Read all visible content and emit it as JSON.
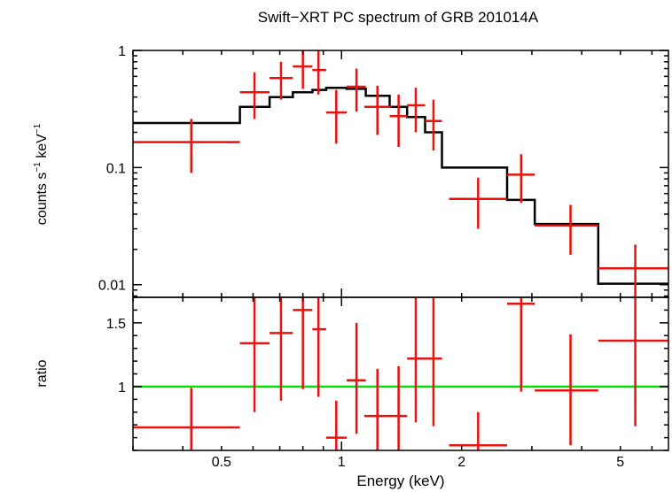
{
  "chart_data": {
    "type": "line",
    "title": "Swift−XRT PC spectrum of GRB 201014A",
    "xlabel": "Energy (keV)",
    "x_scale": "log",
    "xlim": [
      0.3,
      6.6
    ],
    "x_ticks": [
      {
        "value": 0.5,
        "label": "0.5"
      },
      {
        "value": 1,
        "label": "1"
      },
      {
        "value": 2,
        "label": "2"
      },
      {
        "value": 5,
        "label": "5"
      }
    ],
    "top_panel": {
      "ylabel_main": "counts s",
      "ylabel_sup1": "−1",
      "ylabel_mid": " keV",
      "ylabel_sup2": "−1",
      "y_scale": "log",
      "ylim": [
        0.0078,
        1.0
      ],
      "y_ticks": [
        {
          "value": 1,
          "label": "1"
        },
        {
          "value": 0.1,
          "label": "0.1"
        },
        {
          "value": 0.01,
          "label": "0.01"
        }
      ],
      "data_points": [
        {
          "x": 0.42,
          "x_lo": 0.3,
          "x_hi": 0.556,
          "y": 0.165,
          "y_lo": 0.09,
          "y_hi": 0.26
        },
        {
          "x": 0.605,
          "x_lo": 0.556,
          "x_hi": 0.66,
          "y": 0.44,
          "y_lo": 0.26,
          "y_hi": 0.65
        },
        {
          "x": 0.705,
          "x_lo": 0.66,
          "x_hi": 0.755,
          "y": 0.58,
          "y_lo": 0.38,
          "y_hi": 0.8
        },
        {
          "x": 0.8,
          "x_lo": 0.755,
          "x_hi": 0.845,
          "y": 0.73,
          "y_lo": 0.47,
          "y_hi": 1.0
        },
        {
          "x": 0.875,
          "x_lo": 0.845,
          "x_hi": 0.915,
          "y": 0.68,
          "y_lo": 0.42,
          "y_hi": 1.0
        },
        {
          "x": 0.97,
          "x_lo": 0.915,
          "x_hi": 1.03,
          "y": 0.295,
          "y_lo": 0.16,
          "y_hi": 0.46
        },
        {
          "x": 1.09,
          "x_lo": 1.03,
          "x_hi": 1.15,
          "y": 0.49,
          "y_lo": 0.3,
          "y_hi": 0.7
        },
        {
          "x": 1.23,
          "x_lo": 1.14,
          "x_hi": 1.33,
          "y": 0.33,
          "y_lo": 0.19,
          "y_hi": 0.5
        },
        {
          "x": 1.39,
          "x_lo": 1.32,
          "x_hi": 1.46,
          "y": 0.275,
          "y_lo": 0.15,
          "y_hi": 0.42
        },
        {
          "x": 1.535,
          "x_lo": 1.46,
          "x_hi": 1.62,
          "y": 0.34,
          "y_lo": 0.2,
          "y_hi": 0.48
        },
        {
          "x": 1.7,
          "x_lo": 1.62,
          "x_hi": 1.785,
          "y": 0.25,
          "y_lo": 0.14,
          "y_hi": 0.38
        },
        {
          "x": 2.2,
          "x_lo": 1.86,
          "x_hi": 2.6,
          "y": 0.054,
          "y_lo": 0.03,
          "y_hi": 0.082
        },
        {
          "x": 2.82,
          "x_lo": 2.6,
          "x_hi": 3.05,
          "y": 0.087,
          "y_lo": 0.05,
          "y_hi": 0.13
        },
        {
          "x": 3.75,
          "x_lo": 3.05,
          "x_hi": 4.4,
          "y": 0.032,
          "y_lo": 0.018,
          "y_hi": 0.048
        },
        {
          "x": 5.45,
          "x_lo": 4.4,
          "x_hi": 6.6,
          "y": 0.0138,
          "y_lo": 0.0078,
          "y_hi": 0.022
        }
      ],
      "model_steps": [
        {
          "x_lo": 0.3,
          "x_hi": 0.556,
          "y": 0.24
        },
        {
          "x_lo": 0.556,
          "x_hi": 0.66,
          "y": 0.33
        },
        {
          "x_lo": 0.66,
          "x_hi": 0.755,
          "y": 0.4
        },
        {
          "x_lo": 0.755,
          "x_hi": 0.845,
          "y": 0.44
        },
        {
          "x_lo": 0.845,
          "x_hi": 0.915,
          "y": 0.46
        },
        {
          "x_lo": 0.915,
          "x_hi": 1.03,
          "y": 0.48
        },
        {
          "x_lo": 1.03,
          "x_hi": 1.15,
          "y": 0.47
        },
        {
          "x_lo": 1.15,
          "x_hi": 1.32,
          "y": 0.41
        },
        {
          "x_lo": 1.32,
          "x_hi": 1.46,
          "y": 0.33
        },
        {
          "x_lo": 1.46,
          "x_hi": 1.62,
          "y": 0.27
        },
        {
          "x_lo": 1.62,
          "x_hi": 1.785,
          "y": 0.2
        },
        {
          "x_lo": 1.785,
          "x_hi": 2.6,
          "y": 0.1
        },
        {
          "x_lo": 2.6,
          "x_hi": 3.05,
          "y": 0.053
        },
        {
          "x_lo": 3.05,
          "x_hi": 4.4,
          "y": 0.033
        },
        {
          "x_lo": 4.4,
          "x_hi": 6.6,
          "y": 0.0102
        }
      ]
    },
    "bottom_panel": {
      "ylabel": "ratio",
      "y_scale": "linear",
      "ylim": [
        0.5,
        1.7
      ],
      "y_ticks": [
        {
          "value": 1,
          "label": "1"
        },
        {
          "value": 1.5,
          "label": "1.5"
        }
      ],
      "reference_line": 1.0,
      "data_points": [
        {
          "x": 0.42,
          "x_lo": 0.3,
          "x_hi": 0.556,
          "y": 0.68,
          "y_lo": 0.5,
          "y_hi": 0.99
        },
        {
          "x": 0.605,
          "x_lo": 0.556,
          "x_hi": 0.66,
          "y": 1.34,
          "y_lo": 0.8,
          "y_hi": 1.7
        },
        {
          "x": 0.705,
          "x_lo": 0.66,
          "x_hi": 0.755,
          "y": 1.42,
          "y_lo": 0.89,
          "y_hi": 1.7
        },
        {
          "x": 0.8,
          "x_lo": 0.755,
          "x_hi": 0.845,
          "y": 1.6,
          "y_lo": 0.98,
          "y_hi": 1.7
        },
        {
          "x": 0.875,
          "x_lo": 0.845,
          "x_hi": 0.915,
          "y": 1.45,
          "y_lo": 0.92,
          "y_hi": 1.7
        },
        {
          "x": 0.97,
          "x_lo": 0.915,
          "x_hi": 1.03,
          "y": 0.6,
          "y_lo": 0.5,
          "y_hi": 0.89
        },
        {
          "x": 1.09,
          "x_lo": 1.03,
          "x_hi": 1.15,
          "y": 1.05,
          "y_lo": 0.63,
          "y_hi": 1.5
        },
        {
          "x": 1.23,
          "x_lo": 1.14,
          "x_hi": 1.33,
          "y": 0.77,
          "y_lo": 0.5,
          "y_hi": 1.14
        },
        {
          "x": 1.39,
          "x_lo": 1.32,
          "x_hi": 1.46,
          "y": 0.77,
          "y_lo": 0.5,
          "y_hi": 1.16
        },
        {
          "x": 1.535,
          "x_lo": 1.46,
          "x_hi": 1.62,
          "y": 1.22,
          "y_lo": 0.72,
          "y_hi": 1.7
        },
        {
          "x": 1.7,
          "x_lo": 1.62,
          "x_hi": 1.785,
          "y": 1.22,
          "y_lo": 0.69,
          "y_hi": 1.7
        },
        {
          "x": 2.2,
          "x_lo": 1.86,
          "x_hi": 2.6,
          "y": 0.54,
          "y_lo": 0.5,
          "y_hi": 0.8
        },
        {
          "x": 2.82,
          "x_lo": 2.6,
          "x_hi": 3.05,
          "y": 1.65,
          "y_lo": 0.96,
          "y_hi": 1.7
        },
        {
          "x": 3.75,
          "x_lo": 3.05,
          "x_hi": 4.4,
          "y": 0.97,
          "y_lo": 0.54,
          "y_hi": 1.41
        },
        {
          "x": 5.45,
          "x_lo": 4.4,
          "x_hi": 6.6,
          "y": 1.36,
          "y_lo": 0.69,
          "y_hi": 1.7
        }
      ]
    },
    "colors": {
      "data": "#e8120f",
      "model": "#000000",
      "reference": "#00e600",
      "axis": "#000000"
    }
  }
}
